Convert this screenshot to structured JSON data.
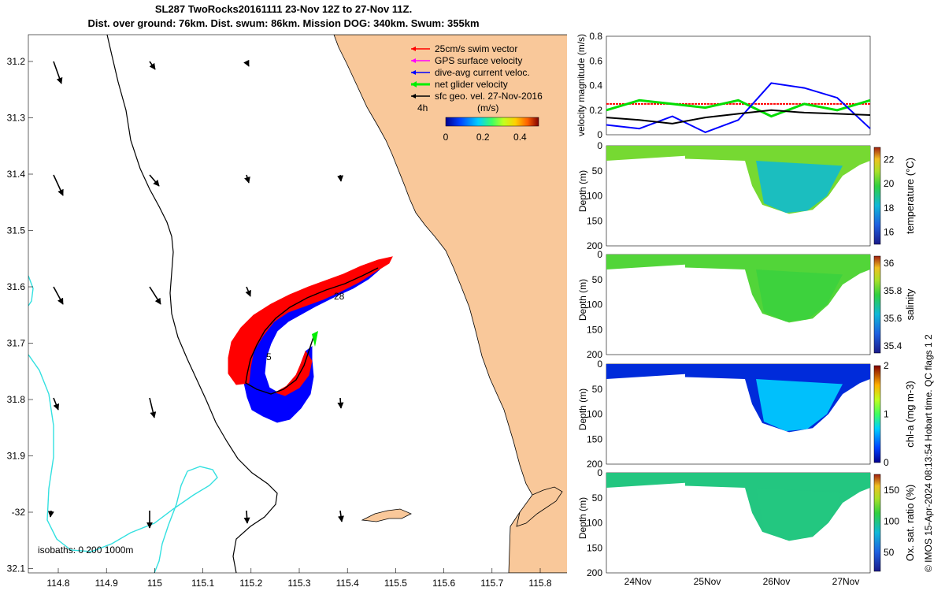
{
  "title": {
    "line1": "SL287 TwoRocks20161111 23-Nov 12Z to 27-Nov 11Z.",
    "line2": "Dist. over ground: 76km. Dist. swum: 86km. Mission DOG: 340km. Swum: 355km"
  },
  "map": {
    "lon_ticks": [
      "114.8",
      "114.9",
      "115",
      "115.1",
      "115.2",
      "115.3",
      "115.4",
      "115.5",
      "115.6",
      "115.7",
      "115.8"
    ],
    "lat_ticks": [
      "31.2",
      "31.3",
      "31.4",
      "31.5",
      "31.6",
      "31.7",
      "31.8",
      "31.9",
      "-32",
      "32.1"
    ],
    "legend": [
      {
        "label": "25cm/s swim vector",
        "color": "#ff0000"
      },
      {
        "label": "GPS surface velocity",
        "color": "#ff00ff"
      },
      {
        "label": "dive-avg current veloc.",
        "color": "#0000ff"
      },
      {
        "label": "net glider velocity",
        "color": "#00ff00"
      },
      {
        "label": "sfc geo. vel. 27-Nov-2016",
        "color": "#000000"
      }
    ],
    "colorbar": {
      "label": "(m/s)",
      "ticks": [
        "0",
        "0.2",
        "0.4"
      ],
      "min": 0,
      "max": 0.5
    },
    "time_note": "4h",
    "isobaths_label": "isobaths: 0   200  1000m",
    "track_labels": [
      "28",
      "5"
    ],
    "land_color": "#f9c89a",
    "isobath_color": "#33e0e0"
  },
  "chart_data": [
    {
      "type": "line",
      "title": "velocity magnitude",
      "ylabel": "velocity magnitude (m/s)",
      "ylim": [
        0,
        0.8
      ],
      "yticks": [
        "0",
        "0.2",
        "0.4",
        "0.6",
        "0.8"
      ],
      "x": [
        0,
        0.5,
        1,
        1.5,
        2,
        2.5,
        3,
        3.5,
        4
      ],
      "series": [
        {
          "name": "swim vector",
          "color": "#ff0000",
          "values": [
            0.25,
            0.25,
            0.25,
            0.25,
            0.25,
            0.25,
            0.25,
            0.25,
            0.25
          ]
        },
        {
          "name": "net glider velocity",
          "color": "#00dd00",
          "values": [
            0.2,
            0.28,
            0.25,
            0.22,
            0.28,
            0.15,
            0.25,
            0.2,
            0.28
          ]
        },
        {
          "name": "dive-avg current",
          "color": "#0000ff",
          "values": [
            0.08,
            0.05,
            0.15,
            0.02,
            0.12,
            0.42,
            0.38,
            0.3,
            0.05
          ]
        },
        {
          "name": "sfc geo. vel.",
          "color": "#000000",
          "values": [
            0.14,
            0.12,
            0.09,
            0.14,
            0.17,
            0.2,
            0.18,
            0.17,
            0.16
          ]
        }
      ]
    },
    {
      "type": "heatmap",
      "variable": "temperature",
      "colorbar_label": "temperature (°C)",
      "ylabel": "Depth (m)",
      "ylim": [
        200,
        0
      ],
      "yticks": [
        "0",
        "50",
        "100",
        "150",
        "200"
      ],
      "cticks": [
        "16",
        "18",
        "20",
        "22"
      ],
      "crange": [
        15,
        23
      ],
      "surface_value": 20.5,
      "deep_value": 18.3
    },
    {
      "type": "heatmap",
      "variable": "salinity",
      "colorbar_label": "salinity",
      "ylabel": "Depth (m)",
      "ylim": [
        200,
        0
      ],
      "yticks": [
        "0",
        "50",
        "100",
        "150",
        "200"
      ],
      "cticks": [
        "35.4",
        "35.6",
        "35.8",
        "36"
      ],
      "crange": [
        35.35,
        36.05
      ],
      "surface_value": 35.8,
      "deep_value": 35.78
    },
    {
      "type": "heatmap",
      "variable": "chl-a",
      "colorbar_label": "chl-a (mg m-3)",
      "ylabel": "Depth (m)",
      "ylim": [
        200,
        0
      ],
      "yticks": [
        "0",
        "50",
        "100",
        "150",
        "200"
      ],
      "cticks": [
        "0",
        "1",
        "2"
      ],
      "crange": [
        0,
        2
      ],
      "surface_value": 0.2,
      "deep_value": 0.7
    },
    {
      "type": "heatmap",
      "variable": "Ox. sat. ratio",
      "colorbar_label": "Ox. sat. ratio (%)",
      "ylabel": "Depth (m)",
      "ylim": [
        200,
        0
      ],
      "yticks": [
        "0",
        "50",
        "100",
        "150",
        "200"
      ],
      "cticks": [
        "50",
        "100",
        "150"
      ],
      "crange": [
        20,
        175
      ],
      "surface_value": 100,
      "deep_value": 100
    }
  ],
  "time_axis": {
    "ticks": [
      "24Nov",
      "25Nov",
      "26Nov",
      "27Nov"
    ]
  },
  "credit": "© IMOS 15-Apr-2024 08:13:54 Hobart time. QC flags 1  2"
}
